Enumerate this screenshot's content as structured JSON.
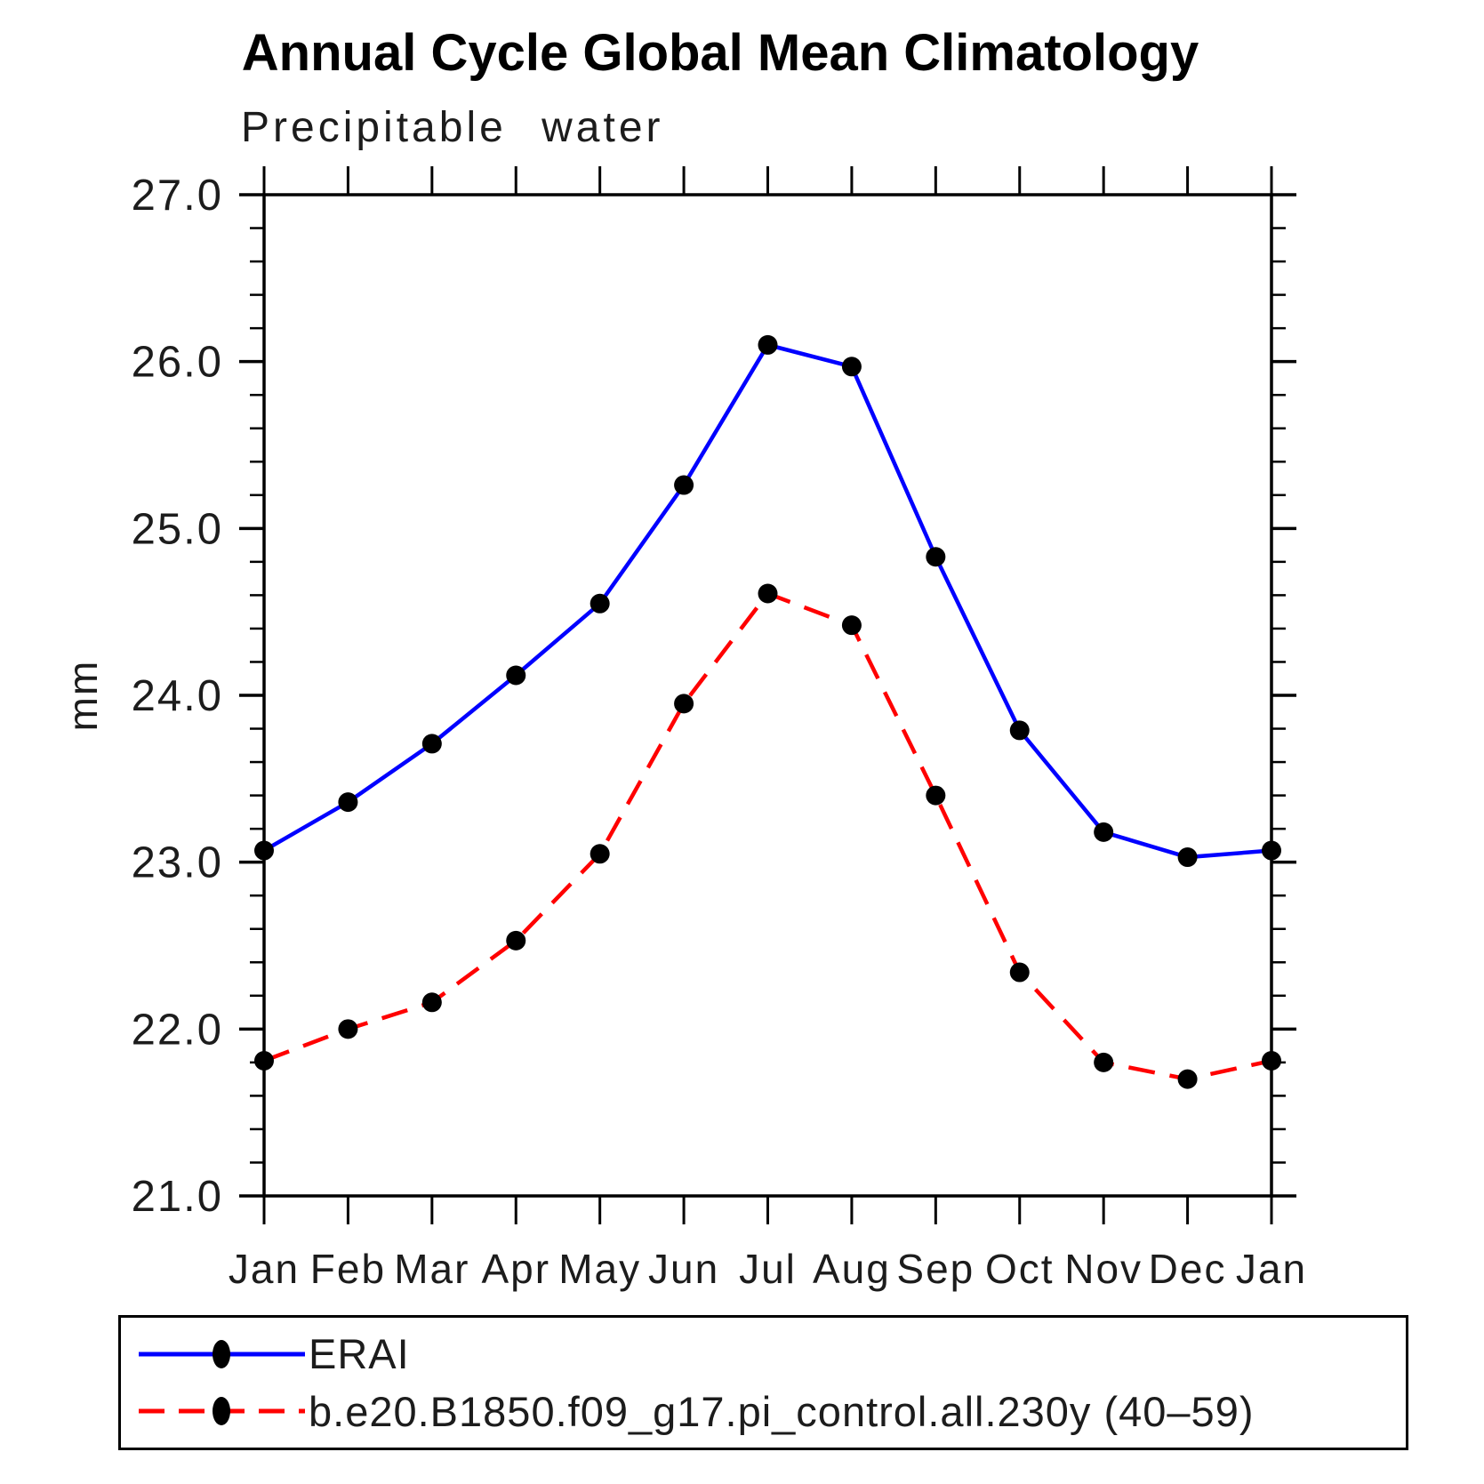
{
  "chart_data": {
    "type": "line",
    "title": "Annual Cycle Global Mean Climatology",
    "subtitle": "Precipitable water",
    "ylabel": "mm",
    "xlabel": "",
    "categories": [
      "Jan",
      "Feb",
      "Mar",
      "Apr",
      "May",
      "Jun",
      "Jul",
      "Aug",
      "Sep",
      "Oct",
      "Nov",
      "Dec",
      "Jan"
    ],
    "series": [
      {
        "name": "ERAI",
        "color": "#0000ff",
        "line_style": "solid",
        "marker": "circle",
        "marker_color": "#000000",
        "values": [
          23.07,
          23.36,
          23.71,
          24.12,
          24.55,
          25.26,
          26.1,
          25.97,
          24.83,
          23.79,
          23.18,
          23.03,
          23.07
        ]
      },
      {
        "name": "b.e20.B1850.f09_g17.pi_control.all.230y (40–59)",
        "color": "#ff0000",
        "line_style": "dashed",
        "marker": "circle",
        "marker_color": "#000000",
        "values": [
          21.81,
          22.0,
          22.16,
          22.53,
          23.05,
          23.95,
          24.61,
          24.42,
          23.4,
          22.34,
          21.8,
          21.7,
          21.81
        ]
      }
    ],
    "ylim": [
      21.0,
      27.0
    ],
    "yticks": [
      21.0,
      22.0,
      23.0,
      24.0,
      25.0,
      26.0,
      27.0
    ],
    "ytick_minor_interval": 0.2,
    "grid": false,
    "axis_color": "#000000",
    "legend_position": "bottom"
  }
}
